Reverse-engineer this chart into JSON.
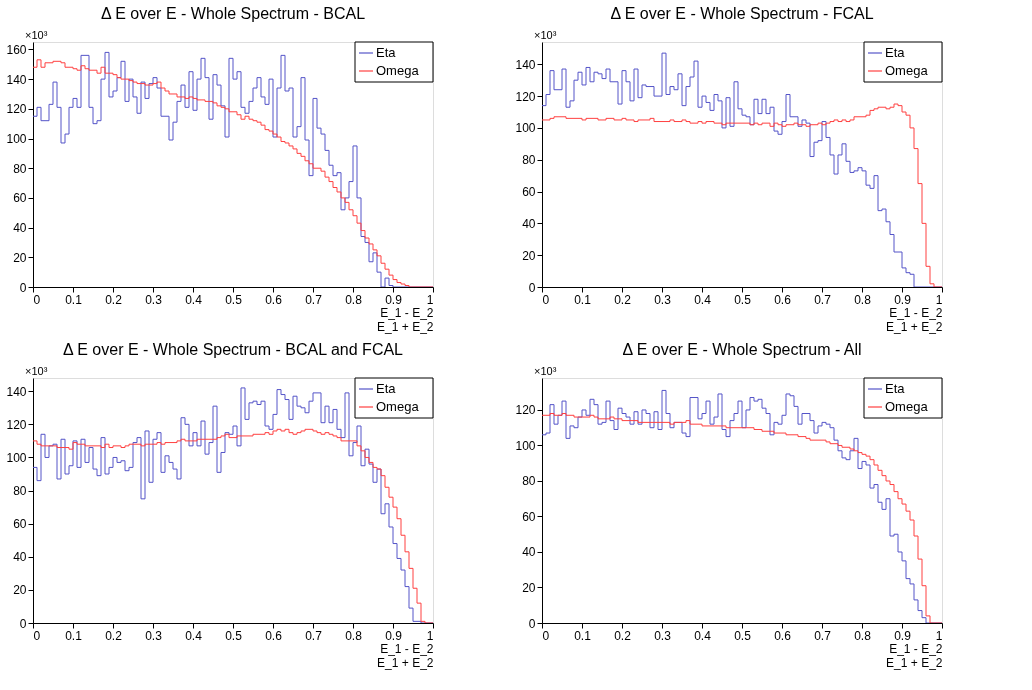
{
  "chart_data": [
    {
      "type": "histogram",
      "title": "Δ E over E - Whole Spectrum - BCAL",
      "xlabel": "E_1 - E_2\nE_1 + E_2",
      "annotations": [
        "×10³"
      ],
      "legend": "top right",
      "grid": false,
      "bins": [
        0,
        0.01,
        0.02,
        0.03,
        0.04,
        0.05,
        0.06,
        0.07,
        0.08,
        0.09,
        0.1,
        0.11,
        0.12,
        0.13,
        0.14,
        0.15,
        0.16,
        0.17,
        0.18,
        0.19,
        0.2,
        0.21,
        0.22,
        0.23,
        0.24,
        0.25,
        0.26,
        0.27,
        0.28,
        0.29,
        0.3,
        0.31,
        0.32,
        0.33,
        0.34,
        0.35,
        0.36,
        0.37,
        0.38,
        0.39,
        0.4,
        0.41,
        0.42,
        0.43,
        0.44,
        0.45,
        0.46,
        0.47,
        0.48,
        0.49,
        0.5,
        0.51,
        0.52,
        0.53,
        0.54,
        0.55,
        0.56,
        0.57,
        0.58,
        0.59,
        0.6,
        0.61,
        0.62,
        0.63,
        0.64,
        0.65,
        0.66,
        0.67,
        0.68,
        0.69,
        0.7,
        0.71,
        0.72,
        0.73,
        0.74,
        0.75,
        0.76,
        0.77,
        0.78,
        0.79,
        0.8,
        0.81,
        0.82,
        0.83,
        0.84,
        0.85,
        0.86,
        0.87,
        0.88,
        0.89,
        0.9,
        0.91,
        0.92,
        0.93,
        0.94,
        0.95,
        0.96,
        0.97,
        0.98,
        0.99,
        1
      ],
      "xlim": [
        0,
        1
      ],
      "xticks": [
        0,
        0.1,
        0.2,
        0.3,
        0.4,
        0.5,
        0.6,
        0.7,
        0.8,
        0.9,
        1
      ],
      "ylim": [
        0,
        165
      ],
      "yticks": [
        0,
        20,
        40,
        60,
        80,
        100,
        120,
        140,
        160
      ],
      "series": [
        {
          "name": "Eta",
          "color": "#5454c8",
          "values": [
            115,
            121,
            112,
            112,
            123,
            138,
            121,
            97,
            103,
            121,
            127,
            121,
            156,
            156,
            121,
            110,
            112,
            140,
            158,
            128,
            132,
            141,
            152,
            125,
            140,
            128,
            117,
            138,
            127,
            137,
            141,
            134,
            115,
            115,
            99,
            111,
            125,
            136,
            121,
            145,
            119,
            140,
            154,
            141,
            113,
            143,
            136,
            122,
            101,
            154,
            140,
            145,
            121,
            117,
            125,
            134,
            141,
            128,
            123,
            140,
            101,
            134,
            156,
            132,
            134,
            101,
            108,
            141,
            99,
            75,
            127,
            107,
            103,
            92,
            82,
            75,
            77,
            52,
            60,
            71,
            95,
            60,
            34,
            30,
            17,
            23,
            10,
            0,
            6,
            1,
            0,
            0,
            0,
            0,
            0,
            0,
            0,
            0,
            0,
            0
          ]
        },
        {
          "name": "Omega",
          "color": "#ff4040",
          "values": [
            148,
            153,
            148,
            151,
            151,
            152,
            152,
            151,
            148,
            148,
            147,
            146,
            149,
            147,
            146,
            146,
            144,
            148,
            144,
            144,
            143,
            141,
            140,
            140,
            139,
            138,
            137,
            137,
            136,
            136,
            137,
            138,
            134,
            132,
            130,
            130,
            128,
            128,
            127,
            128,
            127,
            126,
            126,
            125,
            125,
            124,
            122,
            121,
            120,
            118,
            118,
            116,
            113,
            115,
            113,
            112,
            111,
            109,
            106,
            105,
            103,
            101,
            98,
            97,
            95,
            93,
            90,
            88,
            85,
            83,
            80,
            80,
            78,
            74,
            71,
            67,
            64,
            60,
            57,
            52,
            48,
            43,
            38,
            33,
            29,
            25,
            21,
            16,
            12,
            8,
            5,
            3,
            2,
            1,
            0,
            0,
            0,
            0,
            0,
            0
          ]
        }
      ]
    },
    {
      "type": "histogram",
      "title": "Δ E over E - Whole Spectrum - FCAL",
      "xlabel": "E_1 - E_2\nE_1 + E_2",
      "annotations": [
        "×10³"
      ],
      "legend": "top right",
      "grid": false,
      "bins": [
        0,
        0.01,
        0.02,
        0.03,
        0.04,
        0.05,
        0.06,
        0.07,
        0.08,
        0.09,
        0.1,
        0.11,
        0.12,
        0.13,
        0.14,
        0.15,
        0.16,
        0.17,
        0.18,
        0.19,
        0.2,
        0.21,
        0.22,
        0.23,
        0.24,
        0.25,
        0.26,
        0.27,
        0.28,
        0.29,
        0.3,
        0.31,
        0.32,
        0.33,
        0.34,
        0.35,
        0.36,
        0.37,
        0.38,
        0.39,
        0.4,
        0.41,
        0.42,
        0.43,
        0.44,
        0.45,
        0.46,
        0.47,
        0.48,
        0.49,
        0.5,
        0.51,
        0.52,
        0.53,
        0.54,
        0.55,
        0.56,
        0.57,
        0.58,
        0.59,
        0.6,
        0.61,
        0.62,
        0.63,
        0.64,
        0.65,
        0.66,
        0.67,
        0.68,
        0.69,
        0.7,
        0.71,
        0.72,
        0.73,
        0.74,
        0.75,
        0.76,
        0.77,
        0.78,
        0.79,
        0.8,
        0.81,
        0.82,
        0.83,
        0.84,
        0.85,
        0.86,
        0.87,
        0.88,
        0.89,
        0.9,
        0.91,
        0.92,
        0.93,
        0.94,
        0.95,
        0.96,
        0.97,
        0.98,
        0.99,
        1
      ],
      "xlim": [
        0,
        1
      ],
      "xticks": [
        0,
        0.1,
        0.2,
        0.3,
        0.4,
        0.5,
        0.6,
        0.7,
        0.8,
        0.9,
        1
      ],
      "ylim": [
        0,
        154
      ],
      "yticks": [
        0,
        20,
        40,
        60,
        80,
        100,
        120,
        140
      ],
      "series": [
        {
          "name": "Eta",
          "color": "#5454c8",
          "values": [
            114,
            121,
            136,
            124,
            124,
            137,
            113,
            117,
            130,
            135,
            127,
            138,
            129,
            135,
            134,
            131,
            137,
            129,
            129,
            115,
            136,
            129,
            117,
            137,
            119,
            127,
            126,
            126,
            120,
            120,
            147,
            121,
            126,
            124,
            134,
            114,
            126,
            132,
            142,
            113,
            120,
            116,
            111,
            121,
            117,
            100,
            119,
            101,
            129,
            112,
            108,
            107,
            102,
            118,
            109,
            118,
            109,
            113,
            98,
            96,
            104,
            121,
            107,
            107,
            101,
            105,
            103,
            82,
            91,
            92,
            104,
            94,
            83,
            71,
            83,
            90,
            79,
            72,
            73,
            75,
            73,
            64,
            62,
            70,
            48,
            49,
            41,
            33,
            22,
            22,
            12,
            9,
            8,
            0,
            0,
            0,
            0,
            0,
            0,
            0
          ]
        },
        {
          "name": "Omega",
          "color": "#ff4040",
          "values": [
            105,
            105,
            106,
            107,
            107,
            107,
            106,
            106,
            106,
            106,
            105,
            106,
            106,
            106,
            105,
            105,
            106,
            106,
            105,
            105,
            106,
            105,
            105,
            104,
            105,
            105,
            105,
            106,
            104,
            104,
            104,
            104,
            105,
            104,
            104,
            105,
            104,
            103,
            103,
            104,
            103,
            104,
            104,
            103,
            103,
            102,
            103,
            103,
            103,
            103,
            103,
            103,
            102,
            103,
            102,
            103,
            103,
            101,
            103,
            102,
            101,
            102,
            102,
            103,
            102,
            102,
            101,
            102,
            102,
            103,
            102,
            103,
            104,
            105,
            104,
            105,
            104,
            105,
            107,
            107,
            107,
            108,
            111,
            112,
            113,
            113,
            112,
            113,
            115,
            114,
            110,
            108,
            100,
            87,
            65,
            40,
            13,
            2,
            0,
            0
          ]
        }
      ]
    },
    {
      "type": "histogram",
      "title": "Δ E over E - Whole Spectrum - BCAL and FCAL",
      "xlabel": "E_1 - E_2\nE_1 + E_2",
      "annotations": [
        "×10³"
      ],
      "legend": "top right",
      "grid": false,
      "bins": [
        0,
        0.01,
        0.02,
        0.03,
        0.04,
        0.05,
        0.06,
        0.07,
        0.08,
        0.09,
        0.1,
        0.11,
        0.12,
        0.13,
        0.14,
        0.15,
        0.16,
        0.17,
        0.18,
        0.19,
        0.2,
        0.21,
        0.22,
        0.23,
        0.24,
        0.25,
        0.26,
        0.27,
        0.28,
        0.29,
        0.3,
        0.31,
        0.32,
        0.33,
        0.34,
        0.35,
        0.36,
        0.37,
        0.38,
        0.39,
        0.4,
        0.41,
        0.42,
        0.43,
        0.44,
        0.45,
        0.46,
        0.47,
        0.48,
        0.49,
        0.5,
        0.51,
        0.52,
        0.53,
        0.54,
        0.55,
        0.56,
        0.57,
        0.58,
        0.59,
        0.6,
        0.61,
        0.62,
        0.63,
        0.64,
        0.65,
        0.66,
        0.67,
        0.68,
        0.69,
        0.7,
        0.71,
        0.72,
        0.73,
        0.74,
        0.75,
        0.76,
        0.77,
        0.78,
        0.79,
        0.8,
        0.81,
        0.82,
        0.83,
        0.84,
        0.85,
        0.86,
        0.87,
        0.88,
        0.89,
        0.9,
        0.91,
        0.92,
        0.93,
        0.94,
        0.95,
        0.96,
        0.97,
        0.98,
        0.99,
        1
      ],
      "xlim": [
        0,
        1
      ],
      "xticks": [
        0,
        0.1,
        0.2,
        0.3,
        0.4,
        0.5,
        0.6,
        0.7,
        0.8,
        0.9,
        1
      ],
      "ylim": [
        0,
        148
      ],
      "yticks": [
        0,
        20,
        40,
        60,
        80,
        100,
        120,
        140
      ],
      "series": [
        {
          "name": "Eta",
          "color": "#5454c8",
          "values": [
            94,
            86,
            114,
            100,
            107,
            108,
            87,
            111,
            90,
            95,
            110,
            94,
            111,
            97,
            106,
            93,
            89,
            112,
            90,
            94,
            100,
            97,
            98,
            92,
            94,
            109,
            112,
            75,
            116,
            85,
            111,
            115,
            91,
            101,
            97,
            93,
            87,
            124,
            120,
            107,
            115,
            107,
            122,
            102,
            109,
            131,
            91,
            103,
            115,
            114,
            119,
            107,
            142,
            123,
            133,
            134,
            132,
            134,
            119,
            117,
            126,
            141,
            138,
            135,
            123,
            137,
            131,
            130,
            127,
            134,
            139,
            139,
            121,
            131,
            121,
            129,
            117,
            112,
            139,
            101,
            109,
            119,
            95,
            105,
            96,
            85,
            93,
            66,
            72,
            58,
            48,
            39,
            32,
            22,
            9,
            1,
            1,
            0,
            0,
            0
          ]
        },
        {
          "name": "Omega",
          "color": "#ff4040",
          "values": [
            110,
            108,
            107,
            107,
            107,
            107,
            106,
            106,
            106,
            105,
            109,
            108,
            108,
            107,
            107,
            107,
            107,
            106,
            108,
            106,
            107,
            107,
            106,
            107,
            108,
            108,
            108,
            107,
            108,
            108,
            108,
            109,
            108,
            109,
            109,
            109,
            110,
            111,
            110,
            110,
            110,
            111,
            111,
            111,
            111,
            111,
            112,
            113,
            114,
            112,
            112,
            113,
            113,
            113,
            113,
            114,
            114,
            114,
            115,
            114,
            116,
            117,
            116,
            117,
            115,
            114,
            115,
            116,
            117,
            117,
            116,
            115,
            114,
            115,
            114,
            113,
            112,
            110,
            110,
            110,
            110,
            107,
            104,
            100,
            97,
            94,
            93,
            89,
            82,
            76,
            70,
            63,
            53,
            43,
            33,
            21,
            12,
            1,
            0,
            0
          ]
        }
      ]
    },
    {
      "type": "histogram",
      "title": "Δ E over E - Whole Spectrum - All",
      "xlabel": "E_1 - E_2\nE_1 + E_2",
      "annotations": [
        "×10³"
      ],
      "legend": "top right",
      "grid": false,
      "bins": [
        0,
        0.01,
        0.02,
        0.03,
        0.04,
        0.05,
        0.06,
        0.07,
        0.08,
        0.09,
        0.1,
        0.11,
        0.12,
        0.13,
        0.14,
        0.15,
        0.16,
        0.17,
        0.18,
        0.19,
        0.2,
        0.21,
        0.22,
        0.23,
        0.24,
        0.25,
        0.26,
        0.27,
        0.28,
        0.29,
        0.3,
        0.31,
        0.32,
        0.33,
        0.34,
        0.35,
        0.36,
        0.37,
        0.38,
        0.39,
        0.4,
        0.41,
        0.42,
        0.43,
        0.44,
        0.45,
        0.46,
        0.47,
        0.48,
        0.49,
        0.5,
        0.51,
        0.52,
        0.53,
        0.54,
        0.55,
        0.56,
        0.57,
        0.58,
        0.59,
        0.6,
        0.61,
        0.62,
        0.63,
        0.64,
        0.65,
        0.66,
        0.67,
        0.68,
        0.69,
        0.7,
        0.71,
        0.72,
        0.73,
        0.74,
        0.75,
        0.76,
        0.77,
        0.78,
        0.79,
        0.8,
        0.81,
        0.82,
        0.83,
        0.84,
        0.85,
        0.86,
        0.87,
        0.88,
        0.89,
        0.9,
        0.91,
        0.92,
        0.93,
        0.94,
        0.95,
        0.96,
        0.97,
        0.98,
        0.99,
        1
      ],
      "xlim": [
        0,
        1
      ],
      "xticks": [
        0,
        0.1,
        0.2,
        0.3,
        0.4,
        0.5,
        0.6,
        0.7,
        0.8,
        0.9,
        1
      ],
      "ylim": [
        0,
        138
      ],
      "yticks": [
        0,
        20,
        40,
        60,
        80,
        100,
        120
      ],
      "series": [
        {
          "name": "Eta",
          "color": "#5454c8",
          "values": [
            106,
            107,
            123,
            112,
            117,
            125,
            104,
            111,
            110,
            116,
            120,
            117,
            126,
            123,
            112,
            113,
            125,
            114,
            109,
            121,
            118,
            116,
            112,
            119,
            112,
            120,
            118,
            110,
            119,
            109,
            131,
            118,
            110,
            113,
            113,
            107,
            105,
            127,
            127,
            115,
            118,
            125,
            112,
            116,
            129,
            109,
            105,
            114,
            118,
            125,
            110,
            120,
            127,
            125,
            126,
            121,
            118,
            106,
            113,
            112,
            117,
            129,
            128,
            122,
            112,
            118,
            118,
            114,
            107,
            111,
            113,
            112,
            110,
            103,
            97,
            93,
            92,
            97,
            104,
            87,
            91,
            89,
            76,
            78,
            68,
            64,
            70,
            49,
            50,
            40,
            35,
            25,
            22,
            13,
            7,
            3,
            0,
            0,
            0,
            0
          ]
        },
        {
          "name": "Omega",
          "color": "#ff4040",
          "values": [
            117,
            117,
            118,
            117,
            117,
            118,
            117,
            117,
            116,
            116,
            116,
            116,
            117,
            116,
            115,
            115,
            115,
            116,
            115,
            115,
            114,
            114,
            114,
            114,
            113,
            113,
            113,
            113,
            113,
            113,
            113,
            113,
            112,
            113,
            113,
            113,
            114,
            112,
            112,
            112,
            111,
            111,
            111,
            111,
            111,
            111,
            110,
            110,
            110,
            110,
            110,
            110,
            110,
            109,
            109,
            108,
            108,
            108,
            107,
            107,
            107,
            106,
            106,
            106,
            105,
            105,
            104,
            103,
            103,
            103,
            103,
            102,
            101,
            101,
            100,
            99,
            99,
            98,
            97,
            96,
            95,
            94,
            92,
            89,
            86,
            83,
            80,
            78,
            74,
            70,
            67,
            63,
            58,
            49,
            36,
            21,
            4,
            0,
            0,
            0
          ]
        }
      ]
    }
  ]
}
